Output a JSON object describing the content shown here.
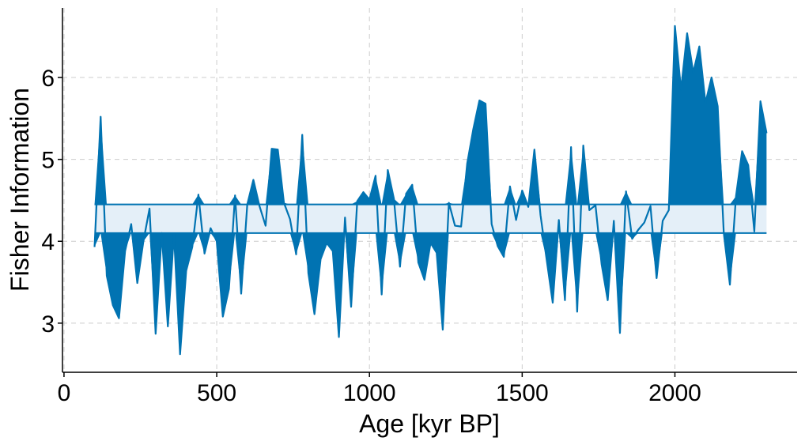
{
  "chart_data": {
    "type": "line",
    "title": "",
    "xlabel": "Age [kyr BP]",
    "ylabel": "Fisher Information",
    "xlim": [
      -5,
      2400
    ],
    "ylim": [
      2.4,
      6.85
    ],
    "xticks": [
      0,
      500,
      1000,
      1500,
      2000
    ],
    "yticks": [
      3,
      4,
      5,
      6
    ],
    "grid": true,
    "colors": {
      "line": "#0173b2",
      "band": "#e4eff8"
    },
    "band": {
      "lower": 4.1,
      "upper": 4.45,
      "x_start": 100,
      "x_end": 2300
    },
    "series": [
      {
        "x": [
          100,
          120,
          140,
          160,
          180,
          200,
          220,
          240,
          260,
          280,
          300,
          320,
          340,
          360,
          380,
          400,
          420,
          440,
          460,
          480,
          500,
          520,
          540,
          560,
          580,
          600,
          620,
          640,
          660,
          680,
          700,
          720,
          740,
          760,
          780,
          800,
          820,
          840,
          860,
          880,
          900,
          920,
          940,
          960,
          980,
          1000,
          1020,
          1040,
          1060,
          1080,
          1100,
          1120,
          1140,
          1160,
          1180,
          1200,
          1220,
          1240,
          1260,
          1280,
          1300,
          1320,
          1340,
          1360,
          1380,
          1400,
          1420,
          1440,
          1460,
          1480,
          1500,
          1520,
          1540,
          1560,
          1580,
          1600,
          1620,
          1640,
          1660,
          1680,
          1700,
          1720,
          1740,
          1760,
          1780,
          1800,
          1820,
          1840,
          1860,
          1880,
          1900,
          1920,
          1940,
          1960,
          1980,
          2000,
          2020,
          2040,
          2060,
          2080,
          2100,
          2120,
          2140,
          2160,
          2180,
          2200,
          2220,
          2240,
          2260,
          2280,
          2300
        ],
        "values": [
          3.93,
          5.52,
          3.58,
          3.22,
          3.06,
          3.88,
          4.21,
          3.49,
          4.0,
          4.4,
          2.87,
          4.1,
          2.96,
          4.09,
          2.62,
          3.64,
          3.93,
          4.57,
          3.85,
          4.16,
          4.0,
          3.08,
          3.42,
          4.56,
          3.36,
          4.45,
          4.75,
          4.43,
          4.19,
          5.13,
          5.12,
          4.47,
          4.27,
          3.84,
          5.3,
          3.61,
          3.11,
          3.78,
          3.98,
          3.88,
          2.83,
          4.29,
          3.2,
          4.49,
          4.6,
          4.51,
          4.8,
          3.35,
          4.87,
          4.52,
          3.69,
          4.58,
          4.69,
          3.74,
          3.53,
          3.98,
          3.86,
          2.92,
          4.47,
          4.19,
          4.18,
          4.95,
          5.37,
          5.72,
          5.68,
          4.21,
          3.94,
          3.81,
          4.67,
          4.26,
          4.62,
          4.42,
          5.12,
          4.32,
          3.78,
          3.25,
          4.26,
          3.28,
          5.15,
          3.14,
          5.17,
          4.38,
          4.44,
          3.72,
          3.28,
          4.25,
          2.88,
          4.61,
          4.03,
          4.14,
          4.23,
          4.43,
          3.55,
          4.25,
          4.38,
          6.63,
          5.85,
          6.54,
          6.06,
          6.38,
          5.69,
          6.0,
          5.65,
          4.1,
          3.47,
          4.55,
          5.1,
          4.93,
          4.12,
          5.71,
          5.32
        ]
      }
    ]
  }
}
